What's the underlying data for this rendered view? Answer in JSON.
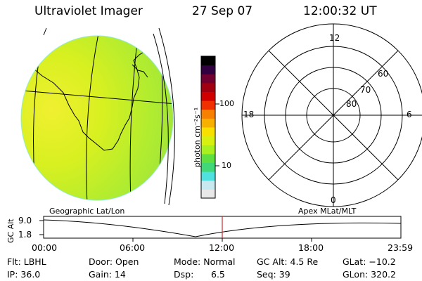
{
  "header": {
    "instrument": "Ultraviolet Imager",
    "date": "27 Sep 07",
    "time": "12:00:32 UT"
  },
  "colorbar": {
    "unit_label": "photon cm⁻²s⁻¹",
    "tick_100": "100",
    "tick_10": "10",
    "colors": [
      "#e8e8e8",
      "#c8e8f0",
      "#50e0e0",
      "#40d878",
      "#60e040",
      "#a8f020",
      "#d8f010",
      "#f8e000",
      "#f8b000",
      "#f88000",
      "#f03000",
      "#d00000",
      "#a00010",
      "#700030",
      "#300040",
      "#000000"
    ]
  },
  "polar": {
    "lbl_12": "12",
    "lbl_18": "18",
    "lbl_6": "6",
    "lbl_0": "0",
    "lbl_60": "60",
    "lbl_70": "70",
    "lbl_80": "80"
  },
  "timeline": {
    "left_title": "Geographic Lat/Lon",
    "right_title": "Apex MLat/MLT",
    "axis_label": "GC Alt",
    "y_top": "9.0",
    "y_bottom": "1.8",
    "ticks": [
      "00:00",
      "06:00",
      "12:00",
      "18:00",
      "23:59"
    ],
    "marker_color": "#c03030"
  },
  "status": {
    "flt": "Flt: LBHL",
    "ip": "IP: 36.0",
    "door": "Door: Open",
    "gain": "Gain: 14",
    "mode": "Mode: Normal",
    "dsp_label": "Dsp:",
    "dsp_value": "6.5",
    "gc_alt": "GC Alt: 4.5 Re",
    "seq": "Seq: 39",
    "glat": "GLat: −10.2",
    "glon": "GLon: 320.2"
  }
}
